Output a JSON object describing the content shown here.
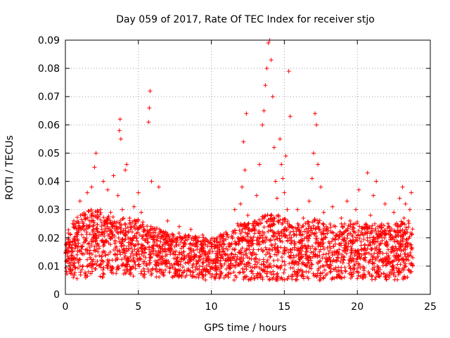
{
  "chart_data": {
    "type": "scatter",
    "title": "Day 059 of 2017, Rate Of TEC Index for receiver stjo",
    "xlabel": "GPS time / hours",
    "ylabel": "ROTI / TECUs",
    "xlim": [
      0,
      25
    ],
    "ylim": [
      0,
      0.09
    ],
    "xticks": [
      0,
      5,
      10,
      15,
      20,
      25
    ],
    "xtick_labels": [
      "0",
      "5",
      "10",
      "15",
      "20",
      "25"
    ],
    "yticks": [
      0,
      0.01,
      0.02,
      0.03,
      0.04,
      0.05,
      0.06,
      0.07,
      0.08,
      0.09
    ],
    "ytick_labels": [
      "0",
      "0.01",
      "0.02",
      "0.03",
      "0.04",
      "0.05",
      "0.06",
      "0.07",
      "0.08",
      "0.09"
    ],
    "grid": true,
    "marker": "+",
    "color": "#ff0000",
    "series": [
      {
        "points": [
          [
            0.1,
            0.012
          ],
          [
            0.2,
            0.02
          ],
          [
            0.3,
            0.009
          ],
          [
            0.4,
            0.015
          ],
          [
            0.5,
            0.025
          ],
          [
            0.6,
            0.011
          ],
          [
            0.7,
            0.018
          ],
          [
            0.8,
            0.014
          ],
          [
            0.9,
            0.022
          ],
          [
            1.0,
            0.033
          ],
          [
            1.1,
            0.016
          ],
          [
            1.2,
            0.01
          ],
          [
            1.3,
            0.028
          ],
          [
            1.4,
            0.019
          ],
          [
            1.5,
            0.036
          ],
          [
            1.6,
            0.024
          ],
          [
            1.7,
            0.013
          ],
          [
            1.8,
            0.038
          ],
          [
            1.9,
            0.021
          ],
          [
            2.0,
            0.045
          ],
          [
            2.1,
            0.05
          ],
          [
            2.2,
            0.027
          ],
          [
            2.3,
            0.017
          ],
          [
            2.4,
            0.03
          ],
          [
            2.5,
            0.023
          ],
          [
            2.6,
            0.04
          ],
          [
            2.7,
            0.015
          ],
          [
            2.8,
            0.026
          ],
          [
            2.9,
            0.037
          ],
          [
            3.0,
            0.012
          ],
          [
            3.1,
            0.029
          ],
          [
            3.2,
            0.02
          ],
          [
            3.3,
            0.042
          ],
          [
            3.4,
            0.018
          ],
          [
            3.5,
            0.024
          ],
          [
            3.6,
            0.035
          ],
          [
            3.7,
            0.058
          ],
          [
            3.75,
            0.062
          ],
          [
            3.8,
            0.055
          ],
          [
            3.9,
            0.03
          ],
          [
            4.0,
            0.016
          ],
          [
            4.1,
            0.044
          ],
          [
            4.2,
            0.046
          ],
          [
            4.3,
            0.022
          ],
          [
            4.4,
            0.027
          ],
          [
            4.5,
            0.012
          ],
          [
            4.6,
            0.019
          ],
          [
            4.7,
            0.031
          ],
          [
            4.8,
            0.025
          ],
          [
            4.9,
            0.014
          ],
          [
            5.0,
            0.036
          ],
          [
            5.1,
            0.021
          ],
          [
            5.2,
            0.029
          ],
          [
            5.3,
            0.017
          ],
          [
            5.4,
            0.023
          ],
          [
            5.5,
            0.013
          ],
          [
            5.7,
            0.061
          ],
          [
            5.75,
            0.066
          ],
          [
            5.8,
            0.072
          ],
          [
            5.9,
            0.04
          ],
          [
            6.0,
            0.02
          ],
          [
            6.2,
            0.015
          ],
          [
            6.4,
            0.038
          ],
          [
            6.6,
            0.022
          ],
          [
            6.8,
            0.012
          ],
          [
            7.0,
            0.026
          ],
          [
            7.2,
            0.016
          ],
          [
            7.4,
            0.021
          ],
          [
            7.6,
            0.011
          ],
          [
            7.8,
            0.024
          ],
          [
            8.0,
            0.014
          ],
          [
            8.2,
            0.019
          ],
          [
            8.4,
            0.009
          ],
          [
            8.6,
            0.023
          ],
          [
            8.8,
            0.013
          ],
          [
            9.0,
            0.018
          ],
          [
            9.2,
            0.01
          ],
          [
            9.4,
            0.021
          ],
          [
            9.6,
            0.015
          ],
          [
            9.8,
            0.008
          ],
          [
            10.0,
            0.017
          ],
          [
            10.2,
            0.012
          ],
          [
            10.4,
            0.02
          ],
          [
            10.6,
            0.009
          ],
          [
            10.8,
            0.016
          ],
          [
            11.0,
            0.022
          ],
          [
            11.2,
            0.013
          ],
          [
            11.4,
            0.018
          ],
          [
            11.6,
            0.03
          ],
          [
            11.8,
            0.025
          ],
          [
            12.0,
            0.032
          ],
          [
            12.1,
            0.038
          ],
          [
            12.2,
            0.054
          ],
          [
            12.3,
            0.044
          ],
          [
            12.4,
            0.064
          ],
          [
            12.5,
            0.028
          ],
          [
            12.7,
            0.019
          ],
          [
            12.9,
            0.025
          ],
          [
            13.1,
            0.035
          ],
          [
            13.3,
            0.046
          ],
          [
            13.5,
            0.06
          ],
          [
            13.6,
            0.065
          ],
          [
            13.7,
            0.074
          ],
          [
            13.8,
            0.08
          ],
          [
            13.9,
            0.089
          ],
          [
            14.0,
            0.09
          ],
          [
            14.1,
            0.083
          ],
          [
            14.2,
            0.07
          ],
          [
            14.3,
            0.052
          ],
          [
            14.4,
            0.04
          ],
          [
            14.5,
            0.034
          ],
          [
            14.6,
            0.028
          ],
          [
            14.7,
            0.055
          ],
          [
            14.8,
            0.046
          ],
          [
            14.9,
            0.041
          ],
          [
            15.0,
            0.036
          ],
          [
            15.1,
            0.049
          ],
          [
            15.2,
            0.03
          ],
          [
            15.3,
            0.079
          ],
          [
            15.4,
            0.063
          ],
          [
            15.5,
            0.024
          ],
          [
            15.7,
            0.018
          ],
          [
            15.9,
            0.03
          ],
          [
            16.1,
            0.022
          ],
          [
            16.3,
            0.027
          ],
          [
            16.5,
            0.016
          ],
          [
            16.7,
            0.033
          ],
          [
            16.9,
            0.041
          ],
          [
            17.0,
            0.05
          ],
          [
            17.1,
            0.064
          ],
          [
            17.2,
            0.06
          ],
          [
            17.3,
            0.046
          ],
          [
            17.5,
            0.038
          ],
          [
            17.7,
            0.029
          ],
          [
            17.9,
            0.023
          ],
          [
            18.1,
            0.017
          ],
          [
            18.3,
            0.031
          ],
          [
            18.5,
            0.024
          ],
          [
            18.7,
            0.014
          ],
          [
            18.9,
            0.027
          ],
          [
            19.1,
            0.02
          ],
          [
            19.3,
            0.033
          ],
          [
            19.5,
            0.026
          ],
          [
            19.7,
            0.018
          ],
          [
            19.9,
            0.03
          ],
          [
            20.1,
            0.037
          ],
          [
            20.3,
            0.022
          ],
          [
            20.5,
            0.016
          ],
          [
            20.7,
            0.043
          ],
          [
            20.9,
            0.028
          ],
          [
            21.1,
            0.035
          ],
          [
            21.3,
            0.04
          ],
          [
            21.5,
            0.024
          ],
          [
            21.7,
            0.019
          ],
          [
            21.9,
            0.032
          ],
          [
            22.1,
            0.025
          ],
          [
            22.3,
            0.015
          ],
          [
            22.5,
            0.029
          ],
          [
            22.7,
            0.021
          ],
          [
            22.9,
            0.034
          ],
          [
            23.1,
            0.038
          ],
          [
            23.2,
            0.027
          ],
          [
            23.3,
            0.032
          ],
          [
            23.4,
            0.018
          ],
          [
            23.5,
            0.026
          ],
          [
            23.6,
            0.03
          ],
          [
            23.7,
            0.036
          ],
          [
            23.8,
            0.013
          ]
        ]
      }
    ],
    "band": {
      "hours": [
        0,
        0.5,
        1,
        1.5,
        2,
        2.5,
        3,
        3.5,
        4,
        4.5,
        5,
        5.5,
        6,
        6.5,
        7,
        7.5,
        8,
        8.5,
        9,
        9.5,
        10,
        10.5,
        11,
        11.5,
        12,
        12.5,
        13,
        13.5,
        14,
        14.5,
        15,
        15.5,
        16,
        16.5,
        17,
        17.5,
        18,
        18.5,
        19,
        19.5,
        20,
        20.5,
        21,
        21.5,
        22,
        22.5,
        23,
        23.5,
        23.8
      ],
      "low": [
        0.007,
        0.006,
        0.005,
        0.006,
        0.007,
        0.006,
        0.006,
        0.007,
        0.007,
        0.006,
        0.006,
        0.006,
        0.006,
        0.006,
        0.006,
        0.006,
        0.006,
        0.006,
        0.005,
        0.005,
        0.005,
        0.005,
        0.005,
        0.005,
        0.005,
        0.005,
        0.005,
        0.005,
        0.005,
        0.005,
        0.005,
        0.005,
        0.005,
        0.005,
        0.005,
        0.005,
        0.005,
        0.005,
        0.005,
        0.005,
        0.005,
        0.005,
        0.005,
        0.005,
        0.005,
        0.005,
        0.005,
        0.006,
        0.007
      ],
      "high": [
        0.022,
        0.026,
        0.028,
        0.03,
        0.031,
        0.029,
        0.028,
        0.027,
        0.027,
        0.026,
        0.027,
        0.025,
        0.024,
        0.023,
        0.022,
        0.022,
        0.022,
        0.021,
        0.021,
        0.02,
        0.02,
        0.021,
        0.022,
        0.023,
        0.025,
        0.025,
        0.026,
        0.028,
        0.029,
        0.028,
        0.027,
        0.025,
        0.025,
        0.026,
        0.027,
        0.026,
        0.025,
        0.025,
        0.025,
        0.025,
        0.026,
        0.025,
        0.025,
        0.025,
        0.025,
        0.025,
        0.026,
        0.026,
        0.024
      ]
    }
  }
}
